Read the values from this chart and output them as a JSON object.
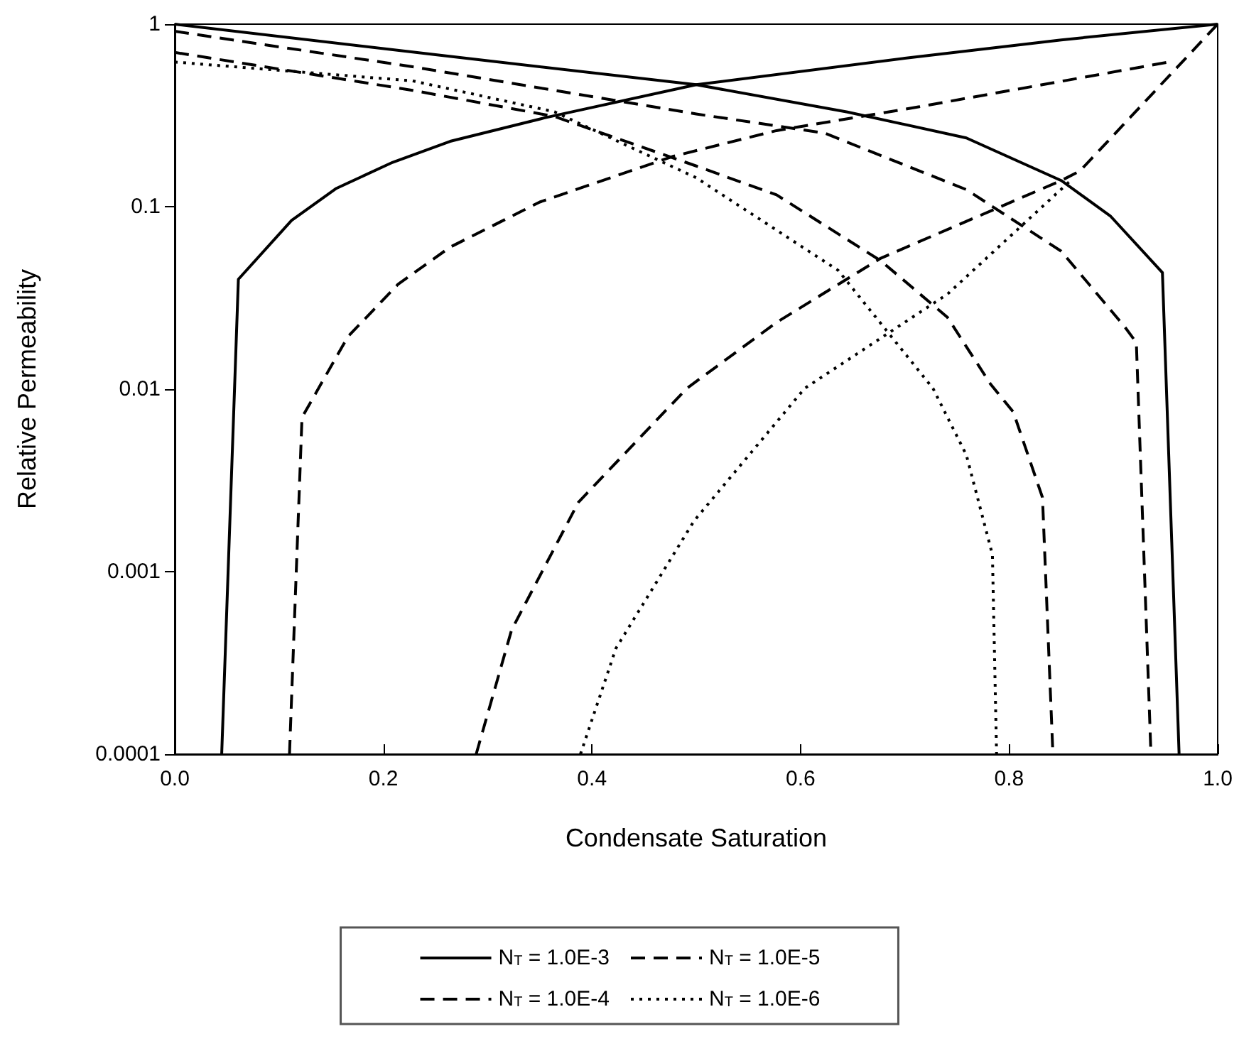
{
  "chart_data": {
    "type": "line",
    "xlabel": "Condensate Saturation",
    "ylabel": "Relative Permeability",
    "log": "y",
    "grid": false,
    "legend": "bottom",
    "marker": "none",
    "xlim": [
      0,
      1
    ],
    "xticks": [
      {
        "value": 0,
        "label": "0.0"
      },
      {
        "value": 0.2,
        "label": "0.2"
      },
      {
        "value": 0.4,
        "label": "0.4"
      },
      {
        "value": 0.6,
        "label": "0.6"
      },
      {
        "value": 0.8,
        "label": "0.8"
      },
      {
        "value": 1,
        "label": "1.0"
      }
    ],
    "ylim": [
      0.0001,
      1
    ],
    "yticks": [
      0.0001,
      0.001,
      0.01,
      0.1,
      1
    ],
    "series": [
      {
        "name": "N$_{T}$ = 1.0E-3",
        "color": "#000000",
        "line_style": "solid",
        "x": [
          0,
          0.25,
          0.5,
          0.645,
          0.759,
          0.85,
          0.897,
          0.947,
          0.963
        ],
        "values": [
          1,
          0.68,
          0.466,
          0.33,
          0.238,
          0.139,
          0.089,
          0.0435,
          0.0001
        ]
      },
      {
        "color": "#000000",
        "line_style": "solid",
        "x": [
          0.045,
          0.061,
          0.112,
          0.155,
          0.209,
          0.264,
          0.354,
          0.5,
          0.7,
          0.85,
          1
        ],
        "values": [
          0.0001,
          0.04,
          0.084,
          0.126,
          0.175,
          0.228,
          0.306,
          0.466,
          0.65,
          0.82,
          1
        ]
      },
      {
        "name": "N$_{T}$ = 1.0E-5",
        "color": "#000000",
        "line_style": "dashed",
        "x": [
          0,
          0.228,
          0.364,
          0.5,
          0.577,
          0.677,
          0.741,
          0.782,
          0.804,
          0.832,
          0.842
        ],
        "values": [
          0.7,
          0.434,
          0.312,
          0.167,
          0.116,
          0.0505,
          0.0247,
          0.0107,
          0.0075,
          0.00255,
          0.0001
        ]
      },
      {
        "color": "#000000",
        "line_style": "dashed",
        "x": [
          0.289,
          0.323,
          0.387,
          0.491,
          0.577,
          0.677,
          0.85,
          0.868,
          1
        ],
        "values": [
          0.0001,
          0.00048,
          0.0024,
          0.0101,
          0.0232,
          0.0522,
          0.139,
          0.157,
          1
        ]
      },
      {
        "name": "N$_{T}$ = 1.0E-4",
        "color": "#000000",
        "line_style": "dashed",
        "x": [
          0,
          0.228,
          0.5,
          0.623,
          0.759,
          0.85,
          0.911,
          0.922,
          0.936
        ],
        "values": [
          0.914,
          0.584,
          0.322,
          0.253,
          0.124,
          0.057,
          0.0219,
          0.018,
          0.0001
        ]
      },
      {
        "color": "#000000",
        "line_style": "dashed",
        "x": [
          0.11,
          0.122,
          0.166,
          0.214,
          0.264,
          0.35,
          0.477,
          0.577,
          0.713,
          0.954
        ],
        "values": [
          0.0001,
          0.007,
          0.0194,
          0.0375,
          0.06,
          0.106,
          0.188,
          0.261,
          0.352,
          0.621
        ]
      },
      {
        "name": "N$_{T}$ = 1.0E-6",
        "color": "#000000",
        "line_style": "dotted",
        "x": [
          0,
          0.228,
          0.364,
          0.5,
          0.636,
          0.727,
          0.759,
          0.784,
          0.788
        ],
        "values": [
          0.62,
          0.489,
          0.331,
          0.144,
          0.0448,
          0.0101,
          0.00436,
          0.00124,
          0.0001
        ]
      },
      {
        "color": "#000000",
        "line_style": "dotted",
        "x": [
          0.389,
          0.423,
          0.498,
          0.604,
          0.741,
          0.859
        ],
        "values": [
          0.0001,
          0.00038,
          0.0019,
          0.0101,
          0.0332,
          0.139
        ]
      }
    ]
  }
}
